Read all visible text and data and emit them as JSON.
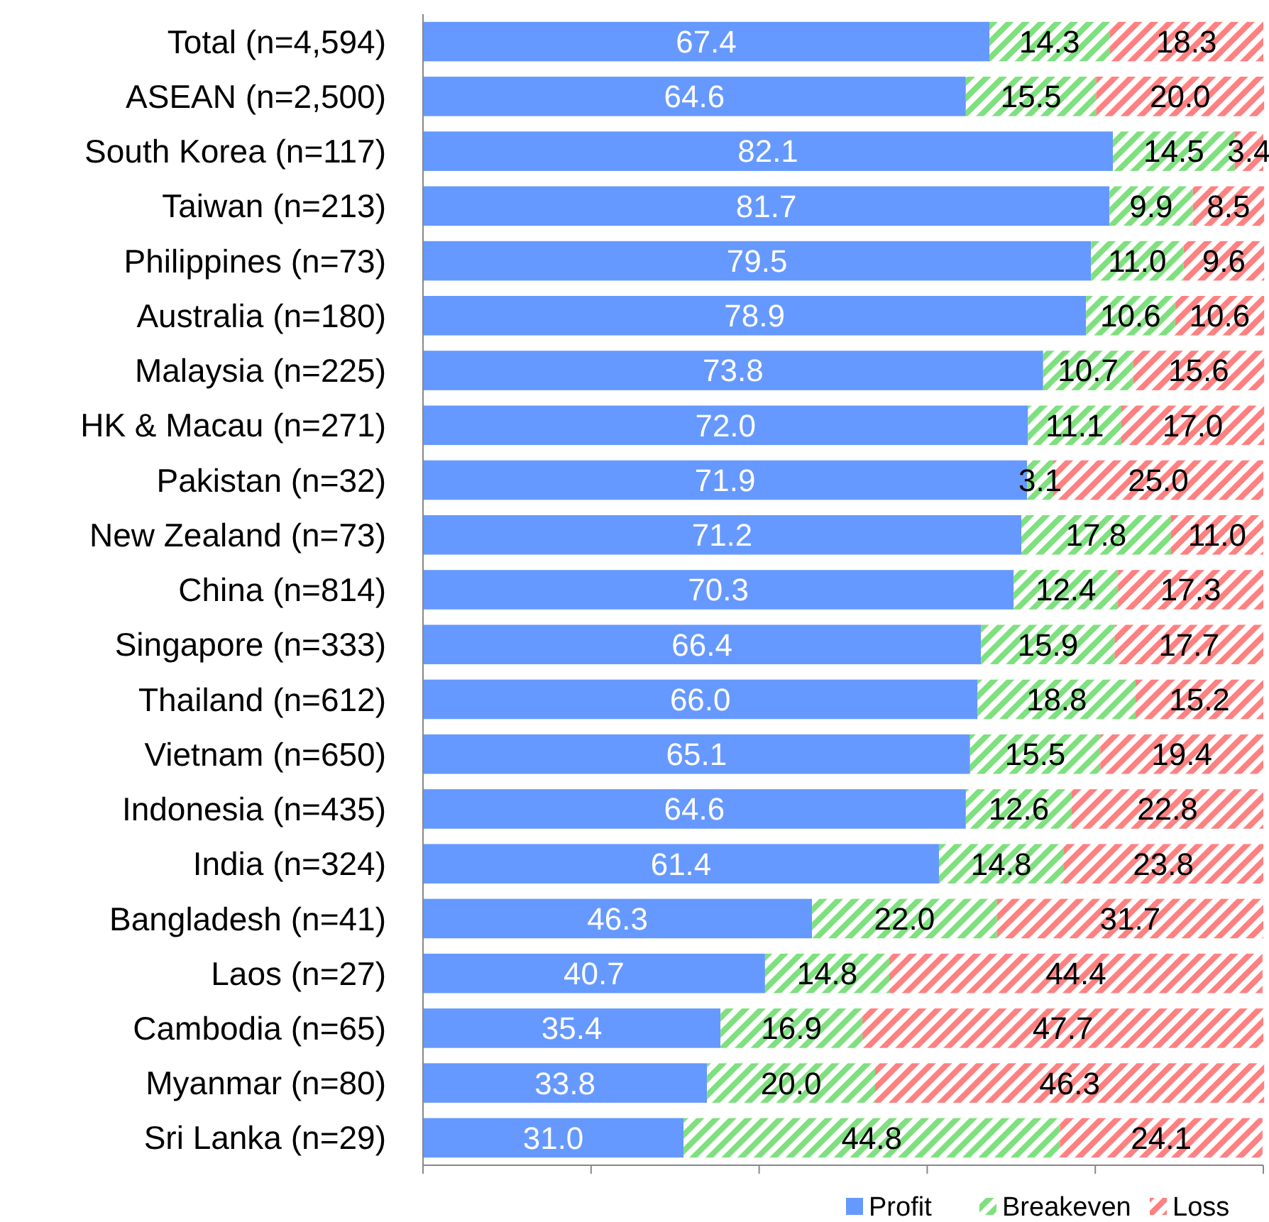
{
  "chart_data": {
    "type": "bar",
    "orientation": "horizontal",
    "stacked": true,
    "legend": "bottom right",
    "tick_labels": "y",
    "categories": [
      "Total (n=4,594)",
      "ASEAN (n=2,500)",
      "South Korea (n=117)",
      "Taiwan (n=213)",
      "Philippines (n=73)",
      "Australia (n=180)",
      "Malaysia (n=225)",
      "HK & Macau (n=271)",
      "Pakistan (n=32)",
      "New Zealand (n=73)",
      "China (n=814)",
      "Singapore (n=333)",
      "Thailand (n=612)",
      "Vietnam (n=650)",
      "Indonesia (n=435)",
      "India (n=324)",
      "Bangladesh (n=41)",
      "Laos (n=27)",
      "Cambodia (n=65)",
      "Myanmar (n=80)",
      "Sri Lanka (n=29)"
    ],
    "xlim": [
      0,
      100
    ],
    "xticks": [
      {
        "value": 0,
        "label": null
      },
      {
        "value": 20,
        "label": null
      },
      {
        "value": 40,
        "label": null
      },
      {
        "value": 60,
        "label": null
      },
      {
        "value": 80,
        "label": null
      },
      {
        "value": 100,
        "label": null
      }
    ],
    "series": [
      {
        "name": "Profit",
        "color": "#6699ff",
        "values": [
          67.4,
          64.6,
          82.1,
          81.7,
          79.5,
          78.9,
          73.8,
          72.0,
          71.9,
          71.2,
          70.3,
          66.4,
          66.0,
          65.1,
          64.6,
          61.4,
          46.3,
          40.7,
          35.4,
          33.8,
          31.0
        ],
        "value_labels": [
          "67.4",
          "64.6",
          "82.1",
          "81.7",
          "79.5",
          "78.9",
          "73.8",
          "72.0",
          "71.9",
          "71.2",
          "70.3",
          "66.4",
          "66.0",
          "65.1",
          "64.6",
          "61.4",
          "46.3",
          "40.7",
          "35.4",
          "33.8",
          "31.0"
        ]
      },
      {
        "name": "Breakeven",
        "color": "#7ee07e",
        "values": [
          14.3,
          15.5,
          14.5,
          9.9,
          11.0,
          10.6,
          10.7,
          11.1,
          3.1,
          17.8,
          12.4,
          15.9,
          18.8,
          15.5,
          12.6,
          14.8,
          22.0,
          14.8,
          16.9,
          20.0,
          44.8
        ],
        "value_labels": [
          "14.3",
          "15.5",
          "14.5",
          "9.9",
          "11.0",
          "10.6",
          "10.7",
          "11.1",
          "3.1",
          "17.8",
          "12.4",
          "15.9",
          "18.8",
          "15.5",
          "12.6",
          "14.8",
          "22.0",
          "14.8",
          "16.9",
          "20.0",
          "44.8"
        ]
      },
      {
        "name": "Loss",
        "color": "#ff8080",
        "values": [
          18.3,
          20.0,
          3.4,
          8.5,
          9.6,
          10.6,
          15.6,
          17.0,
          25.0,
          11.0,
          17.3,
          17.7,
          15.2,
          19.4,
          22.8,
          23.8,
          31.7,
          44.4,
          47.7,
          46.3,
          24.1
        ],
        "value_labels": [
          "18.3",
          "20.0",
          "3.4",
          "8.5",
          "9.6",
          "10.6",
          "15.6",
          "17.0",
          "25.0",
          "11.0",
          "17.3",
          "17.7",
          "15.2",
          "19.4",
          "22.8",
          "23.8",
          "31.7",
          "44.4",
          "47.7",
          "46.3",
          "24.1"
        ]
      }
    ]
  }
}
